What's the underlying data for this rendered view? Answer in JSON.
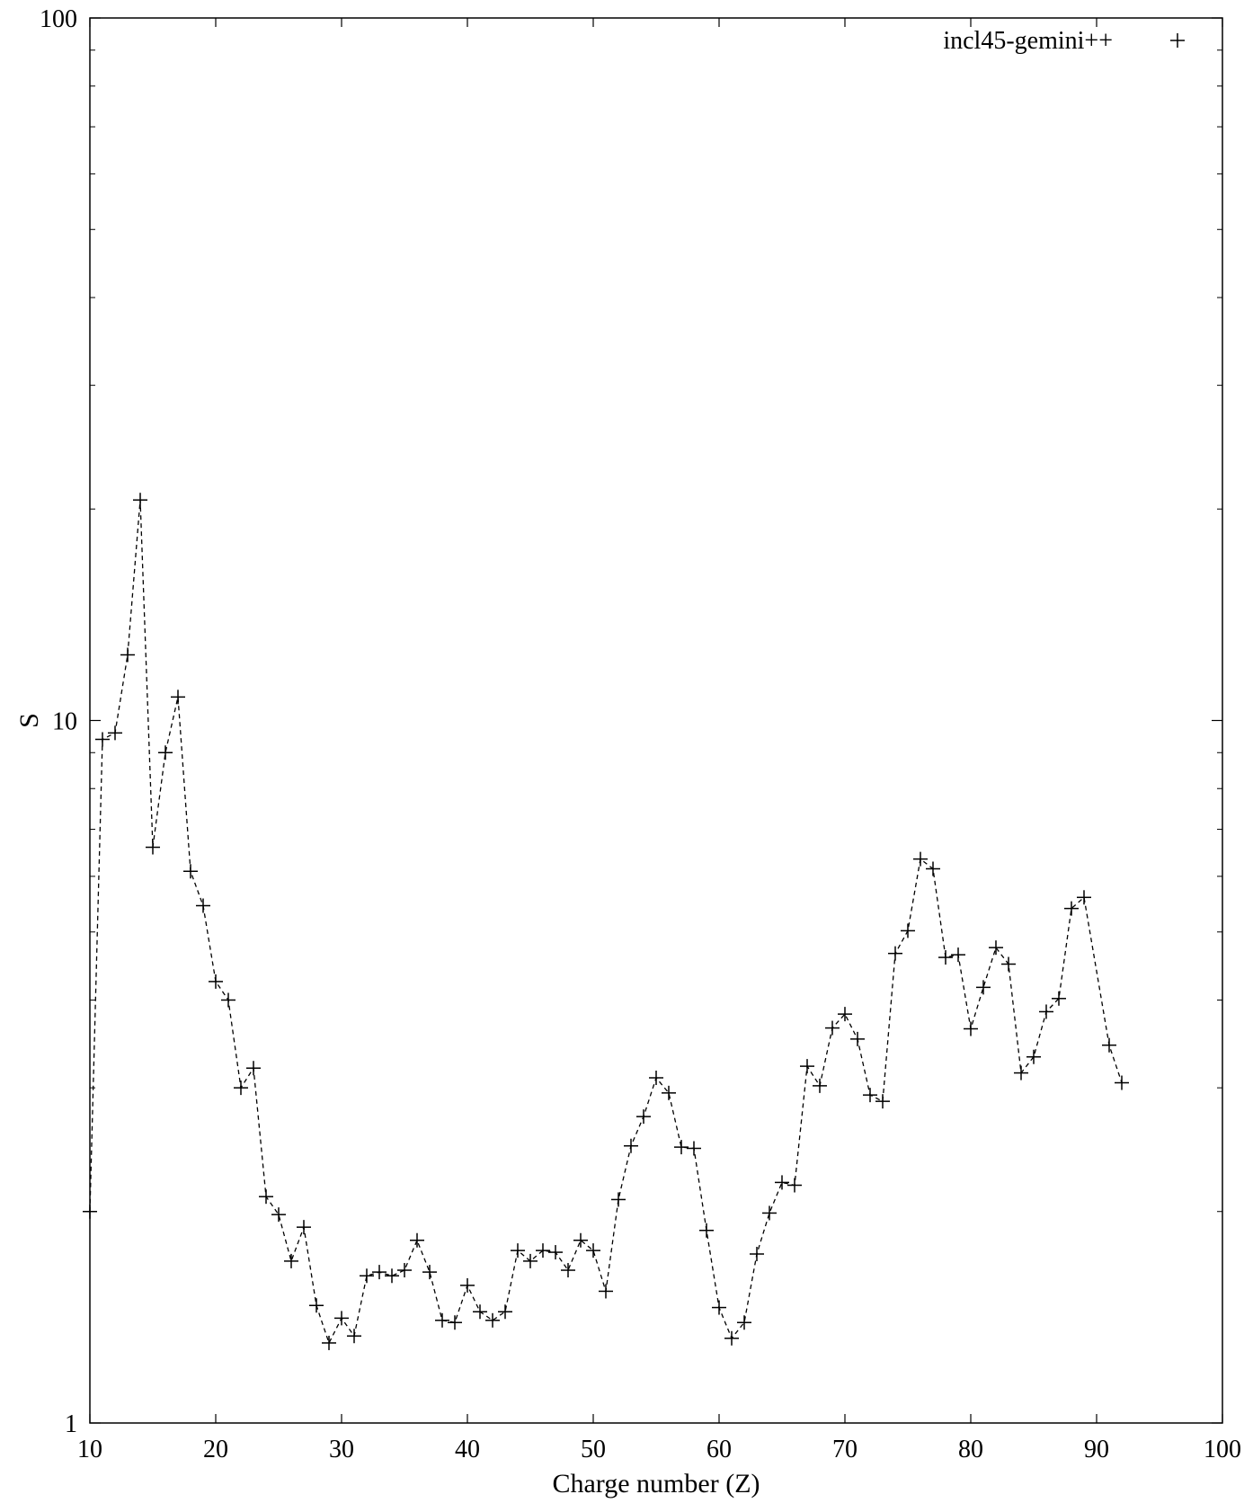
{
  "chart_data": {
    "type": "scatter",
    "title": "",
    "xlabel": "Charge number (Z)",
    "ylabel": "S",
    "xlim": [
      10,
      100
    ],
    "ylim": [
      1,
      100
    ],
    "yscale": "log",
    "grid": false,
    "legend_position": "top-right",
    "x_ticks": [
      "10",
      "20",
      "30",
      "40",
      "50",
      "60",
      "70",
      "80",
      "90",
      "100"
    ],
    "y_ticks": [
      "1",
      "10",
      "100"
    ],
    "series": [
      {
        "name": "incl45-gemini++",
        "marker": "plus",
        "line": "dashed",
        "color": "#000000",
        "x": [
          10,
          11,
          12,
          13,
          14,
          15,
          16,
          17,
          18,
          19,
          20,
          21,
          22,
          23,
          24,
          25,
          26,
          27,
          28,
          29,
          30,
          31,
          32,
          33,
          34,
          35,
          36,
          37,
          38,
          39,
          40,
          41,
          42,
          43,
          44,
          45,
          46,
          47,
          48,
          49,
          50,
          51,
          52,
          53,
          54,
          55,
          56,
          57,
          58,
          59,
          60,
          61,
          62,
          63,
          64,
          65,
          66,
          67,
          68,
          69,
          70,
          71,
          72,
          73,
          74,
          75,
          76,
          77,
          78,
          79,
          80,
          81,
          82,
          83,
          84,
          85,
          86,
          87,
          88,
          89,
          91,
          92
        ],
        "y": [
          2.0,
          9.4,
          9.6,
          12.4,
          20.6,
          6.6,
          9.0,
          10.8,
          6.1,
          5.45,
          4.25,
          4.0,
          3.0,
          3.2,
          2.1,
          1.98,
          1.7,
          1.9,
          1.47,
          1.3,
          1.41,
          1.33,
          1.62,
          1.64,
          1.62,
          1.65,
          1.82,
          1.64,
          1.4,
          1.39,
          1.57,
          1.44,
          1.4,
          1.44,
          1.76,
          1.7,
          1.76,
          1.75,
          1.65,
          1.82,
          1.76,
          1.54,
          2.08,
          2.48,
          2.73,
          3.1,
          2.95,
          2.47,
          2.46,
          1.88,
          1.46,
          1.32,
          1.39,
          1.74,
          1.99,
          2.2,
          2.18,
          3.22,
          3.02,
          3.65,
          3.82,
          3.52,
          2.93,
          2.87,
          4.66,
          5.02,
          6.35,
          6.15,
          4.6,
          4.64,
          3.64,
          4.17,
          4.75,
          4.5,
          3.15,
          3.32,
          3.85,
          4.02,
          5.4,
          5.6,
          3.45,
          3.05
        ]
      }
    ]
  }
}
